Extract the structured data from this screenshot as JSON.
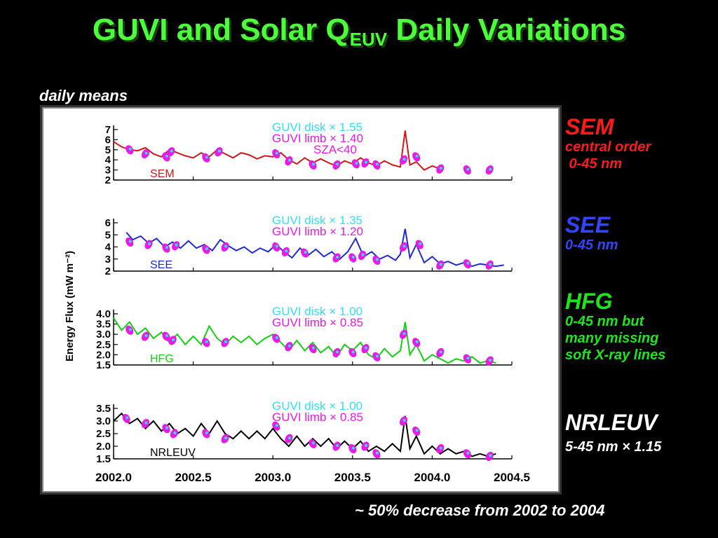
{
  "title": {
    "main": "GUVI and Solar Q",
    "sub": "EUV",
    "rest": " Daily Variations"
  },
  "subtitle": "daily means",
  "footer": {
    "tilde": "~",
    "text": " 50% decrease from 2002 to 2004"
  },
  "colors": {
    "title": "#4cff3a",
    "sem": "#ff1a1a",
    "see": "#2233ff",
    "hfg": "#1ae81a",
    "nrl": "#ffffff",
    "disk": "#33e0f0",
    "limb": "#e81ae8"
  },
  "sidebar": [
    {
      "heading": "SEM",
      "color": "#ff1a1a",
      "lines": [
        "central order",
        " 0-45 nm"
      ]
    },
    {
      "heading": "SEE",
      "color": "#3344ff",
      "lines": [
        "0-45 nm"
      ]
    },
    {
      "heading": "HFG",
      "color": "#1ae81a",
      "lines": [
        "0-45 nm but",
        "many missing",
        "soft X-ray lines"
      ]
    },
    {
      "heading": "NRLEUV",
      "color": "#ffffff",
      "lines": [
        "5-45 nm × 1.15"
      ]
    }
  ],
  "chart_data": {
    "type": "line",
    "ylabel": "Energy Flux  (mW m⁻²)",
    "xlim": [
      2002.0,
      2004.5
    ],
    "xticks": [
      "2002.0",
      "2002.5",
      "2003.0",
      "2003.5",
      "2004.0",
      "2004.5"
    ],
    "panels": [
      {
        "name": "SEM",
        "color": "#d01818",
        "ylim": [
          2,
          7
        ],
        "yticks": [
          "2",
          "3",
          "4",
          "5",
          "6",
          "7"
        ],
        "disk_label": "GUVI  disk × 1.55",
        "limb_label": "GUVI  limb × 1.40",
        "extra_label": "SZA<40",
        "line": [
          [
            2002.0,
            5.8
          ],
          [
            2002.05,
            5.3
          ],
          [
            2002.1,
            5.0
          ],
          [
            2002.15,
            4.9
          ],
          [
            2002.2,
            5.2
          ],
          [
            2002.25,
            4.6
          ],
          [
            2002.3,
            4.3
          ],
          [
            2002.35,
            5.0
          ],
          [
            2002.4,
            4.7
          ],
          [
            2002.45,
            4.4
          ],
          [
            2002.5,
            4.2
          ],
          [
            2002.55,
            4.7
          ],
          [
            2002.6,
            4.3
          ],
          [
            2002.65,
            5.0
          ],
          [
            2002.7,
            4.6
          ],
          [
            2002.75,
            4.2
          ],
          [
            2002.8,
            4.7
          ],
          [
            2002.85,
            4.5
          ],
          [
            2002.9,
            4.1
          ],
          [
            2002.95,
            4.4
          ],
          [
            2003.0,
            4.3
          ],
          [
            2003.05,
            4.7
          ],
          [
            2003.1,
            4.0
          ],
          [
            2003.15,
            3.6
          ],
          [
            2003.2,
            4.2
          ],
          [
            2003.25,
            3.7
          ],
          [
            2003.3,
            4.1
          ],
          [
            2003.35,
            3.7
          ],
          [
            2003.4,
            3.4
          ],
          [
            2003.45,
            3.9
          ],
          [
            2003.5,
            3.6
          ],
          [
            2003.55,
            4.2
          ],
          [
            2003.6,
            3.7
          ],
          [
            2003.65,
            3.4
          ],
          [
            2003.7,
            3.9
          ],
          [
            2003.75,
            3.5
          ],
          [
            2003.8,
            3.3
          ],
          [
            2003.83,
            6.9
          ],
          [
            2003.86,
            3.5
          ],
          [
            2003.9,
            3.8
          ],
          [
            2003.95,
            3.0
          ],
          [
            2004.0,
            3.4
          ],
          [
            2004.05,
            3.1
          ]
        ],
        "guvi": [
          [
            2002.1,
            5.0
          ],
          [
            2002.2,
            4.6
          ],
          [
            2002.33,
            4.3
          ],
          [
            2002.36,
            4.8
          ],
          [
            2002.58,
            4.2
          ],
          [
            2002.66,
            4.8
          ],
          [
            2003.02,
            4.6
          ],
          [
            2003.1,
            3.9
          ],
          [
            2003.25,
            3.5
          ],
          [
            2003.4,
            3.5
          ],
          [
            2003.52,
            3.6
          ],
          [
            2003.58,
            3.7
          ],
          [
            2003.65,
            3.5
          ],
          [
            2003.82,
            4.0
          ],
          [
            2003.9,
            4.3
          ],
          [
            2004.05,
            3.1
          ],
          [
            2004.22,
            3.0
          ],
          [
            2004.36,
            3.0
          ]
        ],
        "curve_label": "SEM"
      },
      {
        "name": "SEE",
        "color": "#1f2bd0",
        "ylim": [
          2,
          6
        ],
        "yticks": [
          "2",
          "3",
          "4",
          "5",
          "6"
        ],
        "disk_label": "GUVI  disk × 1.35",
        "limb_label": "GUVI  limb × 1.20",
        "line": [
          [
            2002.08,
            5.2
          ],
          [
            2002.12,
            4.6
          ],
          [
            2002.17,
            4.9
          ],
          [
            2002.22,
            4.3
          ],
          [
            2002.27,
            4.7
          ],
          [
            2002.32,
            4.0
          ],
          [
            2002.37,
            4.4
          ],
          [
            2002.42,
            3.9
          ],
          [
            2002.47,
            4.5
          ],
          [
            2002.52,
            3.9
          ],
          [
            2002.57,
            4.2
          ],
          [
            2002.62,
            3.7
          ],
          [
            2002.67,
            4.6
          ],
          [
            2002.72,
            4.1
          ],
          [
            2002.77,
            3.7
          ],
          [
            2002.82,
            4.0
          ],
          [
            2002.87,
            3.5
          ],
          [
            2002.92,
            3.9
          ],
          [
            2002.97,
            3.6
          ],
          [
            2003.02,
            4.2
          ],
          [
            2003.07,
            3.6
          ],
          [
            2003.12,
            3.1
          ],
          [
            2003.17,
            3.9
          ],
          [
            2003.22,
            3.3
          ],
          [
            2003.27,
            3.8
          ],
          [
            2003.32,
            3.2
          ],
          [
            2003.37,
            3.6
          ],
          [
            2003.42,
            3.0
          ],
          [
            2003.47,
            3.6
          ],
          [
            2003.52,
            4.7
          ],
          [
            2003.57,
            3.2
          ],
          [
            2003.62,
            3.6
          ],
          [
            2003.67,
            3.0
          ],
          [
            2003.72,
            3.3
          ],
          [
            2003.77,
            2.9
          ],
          [
            2003.8,
            3.4
          ],
          [
            2003.83,
            5.5
          ],
          [
            2003.86,
            3.1
          ],
          [
            2003.9,
            4.2
          ],
          [
            2003.95,
            2.7
          ],
          [
            2004.0,
            3.2
          ],
          [
            2004.05,
            2.6
          ],
          [
            2004.1,
            2.8
          ],
          [
            2004.15,
            2.5
          ],
          [
            2004.2,
            2.7
          ],
          [
            2004.25,
            2.4
          ],
          [
            2004.3,
            2.6
          ],
          [
            2004.35,
            2.5
          ],
          [
            2004.4,
            2.4
          ],
          [
            2004.45,
            2.5
          ]
        ],
        "guvi": [
          [
            2002.1,
            4.4
          ],
          [
            2002.22,
            4.2
          ],
          [
            2002.33,
            3.9
          ],
          [
            2002.39,
            4.1
          ],
          [
            2002.58,
            3.8
          ],
          [
            2002.7,
            4.0
          ],
          [
            2003.02,
            4.0
          ],
          [
            2003.08,
            3.6
          ],
          [
            2003.2,
            3.5
          ],
          [
            2003.4,
            3.1
          ],
          [
            2003.5,
            3.1
          ],
          [
            2003.56,
            3.3
          ],
          [
            2003.65,
            2.9
          ],
          [
            2003.82,
            4.0
          ],
          [
            2003.92,
            4.2
          ],
          [
            2004.05,
            2.5
          ],
          [
            2004.22,
            2.6
          ],
          [
            2004.36,
            2.5
          ]
        ],
        "curve_label": "SEE"
      },
      {
        "name": "HFG",
        "color": "#12d012",
        "ylim": [
          1.5,
          4.0
        ],
        "yticks": [
          "1.5",
          "2.0",
          "2.5",
          "3.0",
          "3.5",
          "4.0"
        ],
        "disk_label": "GUVI  disk × 1.00",
        "limb_label": "GUVI  limb × 0.85",
        "line": [
          [
            2002.0,
            3.8
          ],
          [
            2002.05,
            3.2
          ],
          [
            2002.1,
            3.6
          ],
          [
            2002.15,
            3.0
          ],
          [
            2002.2,
            3.3
          ],
          [
            2002.25,
            2.8
          ],
          [
            2002.3,
            3.1
          ],
          [
            2002.35,
            2.6
          ],
          [
            2002.4,
            3.0
          ],
          [
            2002.45,
            2.5
          ],
          [
            2002.5,
            2.9
          ],
          [
            2002.55,
            2.5
          ],
          [
            2002.6,
            3.4
          ],
          [
            2002.65,
            2.8
          ],
          [
            2002.7,
            2.5
          ],
          [
            2002.75,
            2.9
          ],
          [
            2002.8,
            2.6
          ],
          [
            2002.85,
            2.9
          ],
          [
            2002.9,
            2.5
          ],
          [
            2002.95,
            2.8
          ],
          [
            2003.0,
            3.0
          ],
          [
            2003.05,
            2.6
          ],
          [
            2003.1,
            2.2
          ],
          [
            2003.15,
            2.7
          ],
          [
            2003.2,
            2.2
          ],
          [
            2003.25,
            2.6
          ],
          [
            2003.3,
            2.1
          ],
          [
            2003.35,
            2.4
          ],
          [
            2003.4,
            1.9
          ],
          [
            2003.45,
            2.5
          ],
          [
            2003.5,
            2.2
          ],
          [
            2003.55,
            2.6
          ],
          [
            2003.6,
            2.0
          ],
          [
            2003.65,
            1.8
          ],
          [
            2003.7,
            2.3
          ],
          [
            2003.75,
            1.9
          ],
          [
            2003.8,
            2.2
          ],
          [
            2003.83,
            3.6
          ],
          [
            2003.86,
            2.0
          ],
          [
            2003.9,
            2.5
          ],
          [
            2003.95,
            1.7
          ],
          [
            2004.0,
            2.0
          ],
          [
            2004.05,
            1.8
          ],
          [
            2004.1,
            1.6
          ],
          [
            2004.15,
            1.8
          ],
          [
            2004.2,
            1.7
          ],
          [
            2004.25,
            1.9
          ],
          [
            2004.3,
            1.6
          ],
          [
            2004.35,
            1.7
          ],
          [
            2004.4,
            1.6
          ]
        ],
        "guvi": [
          [
            2002.1,
            3.2
          ],
          [
            2002.2,
            2.9
          ],
          [
            2002.33,
            2.9
          ],
          [
            2002.37,
            2.7
          ],
          [
            2002.58,
            2.6
          ],
          [
            2002.7,
            2.6
          ],
          [
            2003.02,
            2.8
          ],
          [
            2003.1,
            2.4
          ],
          [
            2003.25,
            2.3
          ],
          [
            2003.4,
            2.1
          ],
          [
            2003.5,
            2.1
          ],
          [
            2003.58,
            2.3
          ],
          [
            2003.65,
            1.9
          ],
          [
            2003.82,
            3.0
          ],
          [
            2003.9,
            2.6
          ],
          [
            2004.05,
            2.1
          ],
          [
            2004.22,
            1.8
          ],
          [
            2004.36,
            1.7
          ]
        ],
        "curve_label": "HFG"
      },
      {
        "name": "NRLEUV",
        "color": "#000000",
        "ylim": [
          1.5,
          3.5
        ],
        "yticks": [
          "1.5",
          "2.0",
          "2.5",
          "3.0",
          "3.5"
        ],
        "disk_label": "GUVI  disk × 1.00",
        "limb_label": "GUVI  limb × 0.85",
        "line": [
          [
            2002.0,
            3.0
          ],
          [
            2002.05,
            3.3
          ],
          [
            2002.1,
            2.9
          ],
          [
            2002.15,
            3.1
          ],
          [
            2002.2,
            2.7
          ],
          [
            2002.25,
            3.0
          ],
          [
            2002.3,
            2.6
          ],
          [
            2002.35,
            2.9
          ],
          [
            2002.4,
            2.5
          ],
          [
            2002.45,
            2.7
          ],
          [
            2002.5,
            2.4
          ],
          [
            2002.55,
            2.9
          ],
          [
            2002.6,
            2.5
          ],
          [
            2002.65,
            3.0
          ],
          [
            2002.7,
            2.5
          ],
          [
            2002.75,
            2.3
          ],
          [
            2002.8,
            2.6
          ],
          [
            2002.85,
            2.3
          ],
          [
            2002.9,
            2.6
          ],
          [
            2002.95,
            2.3
          ],
          [
            2003.0,
            2.7
          ],
          [
            2003.05,
            2.3
          ],
          [
            2003.1,
            2.0
          ],
          [
            2003.15,
            2.4
          ],
          [
            2003.2,
            2.0
          ],
          [
            2003.25,
            2.3
          ],
          [
            2003.3,
            2.0
          ],
          [
            2003.35,
            2.3
          ],
          [
            2003.4,
            1.9
          ],
          [
            2003.45,
            2.2
          ],
          [
            2003.5,
            1.9
          ],
          [
            2003.55,
            2.2
          ],
          [
            2003.6,
            1.8
          ],
          [
            2003.65,
            2.0
          ],
          [
            2003.7,
            1.8
          ],
          [
            2003.75,
            2.1
          ],
          [
            2003.8,
            1.8
          ],
          [
            2003.83,
            3.2
          ],
          [
            2003.86,
            1.9
          ],
          [
            2003.9,
            2.4
          ],
          [
            2003.95,
            1.7
          ],
          [
            2004.0,
            2.0
          ],
          [
            2004.05,
            1.7
          ],
          [
            2004.1,
            1.9
          ],
          [
            2004.15,
            1.7
          ],
          [
            2004.2,
            1.8
          ],
          [
            2004.25,
            1.6
          ],
          [
            2004.3,
            1.7
          ],
          [
            2004.35,
            1.6
          ],
          [
            2004.4,
            1.7
          ]
        ],
        "guvi": [
          [
            2002.08,
            3.1
          ],
          [
            2002.2,
            2.9
          ],
          [
            2002.33,
            2.7
          ],
          [
            2002.38,
            2.5
          ],
          [
            2002.58,
            2.5
          ],
          [
            2002.7,
            2.3
          ],
          [
            2003.02,
            2.8
          ],
          [
            2003.1,
            2.3
          ],
          [
            2003.25,
            2.1
          ],
          [
            2003.4,
            2.0
          ],
          [
            2003.5,
            1.9
          ],
          [
            2003.58,
            2.0
          ],
          [
            2003.65,
            1.7
          ],
          [
            2003.82,
            3.0
          ],
          [
            2003.9,
            2.6
          ],
          [
            2004.05,
            1.9
          ],
          [
            2004.22,
            1.7
          ],
          [
            2004.36,
            1.6
          ]
        ],
        "curve_label": "NRLEUV"
      }
    ]
  }
}
